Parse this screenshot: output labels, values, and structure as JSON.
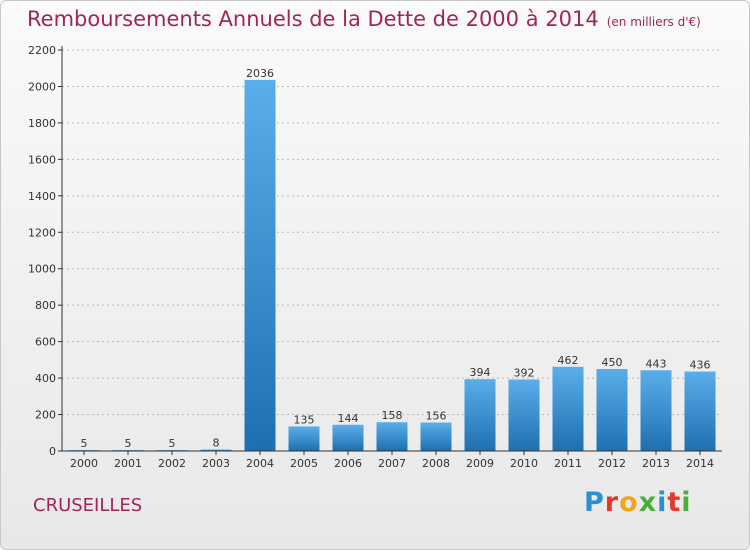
{
  "header": {
    "title": "Remboursements Annuels de la Dette de 2000 à 2014",
    "unit": "(en milliers d'€)"
  },
  "footer": {
    "place": "CRUSEILLES",
    "logo": "Proxiti",
    "logo_colors": [
      "#2a8fd4",
      "#e8362d",
      "#f2a51a",
      "#46b03b",
      "#2a8fd4",
      "#e8362d",
      "#46b03b"
    ]
  },
  "colors": {
    "bar_light": "#5aaee9",
    "bar_dark": "#1f6fb0",
    "axis": "#333333",
    "grid": "#bbbbbb",
    "title": "#a0265a"
  },
  "chart_data": {
    "type": "bar",
    "categories": [
      "2000",
      "2001",
      "2002",
      "2003",
      "2004",
      "2005",
      "2006",
      "2007",
      "2008",
      "2009",
      "2010",
      "2011",
      "2012",
      "2013",
      "2014"
    ],
    "values": [
      5,
      5,
      5,
      8,
      2036,
      135,
      144,
      158,
      156,
      394,
      392,
      462,
      450,
      443,
      436
    ],
    "ylim": [
      0,
      2200
    ],
    "yticks": [
      0,
      200,
      400,
      600,
      800,
      1000,
      1200,
      1400,
      1600,
      1800,
      2000,
      2200
    ],
    "grid": true,
    "data_labels": true
  }
}
